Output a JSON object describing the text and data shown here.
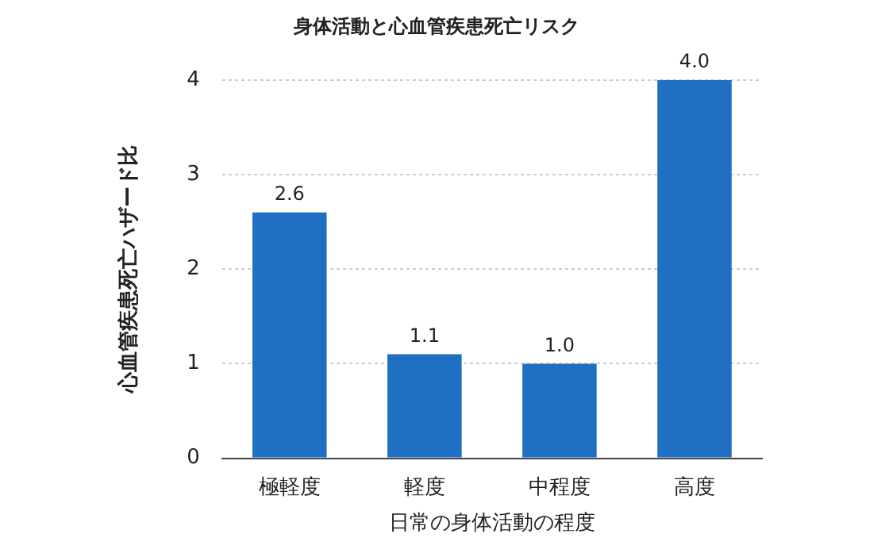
{
  "chart_data": {
    "type": "bar",
    "title": "身体活動と心血管疾患死亡リスク",
    "xlabel": "日常の身体活動の程度",
    "ylabel": "心血管疾患死亡ハザード比",
    "categories": [
      "極軽度",
      "軽度",
      "中程度",
      "高度"
    ],
    "values": [
      2.6,
      1.1,
      1.0,
      4.0
    ],
    "value_labels": [
      "2.6",
      "1.1",
      "1.0",
      "4.0"
    ],
    "color": "#1f6fc2",
    "ylim": [
      0,
      4
    ],
    "yticks": [
      0,
      1,
      2,
      3,
      4
    ],
    "grid": "y"
  }
}
